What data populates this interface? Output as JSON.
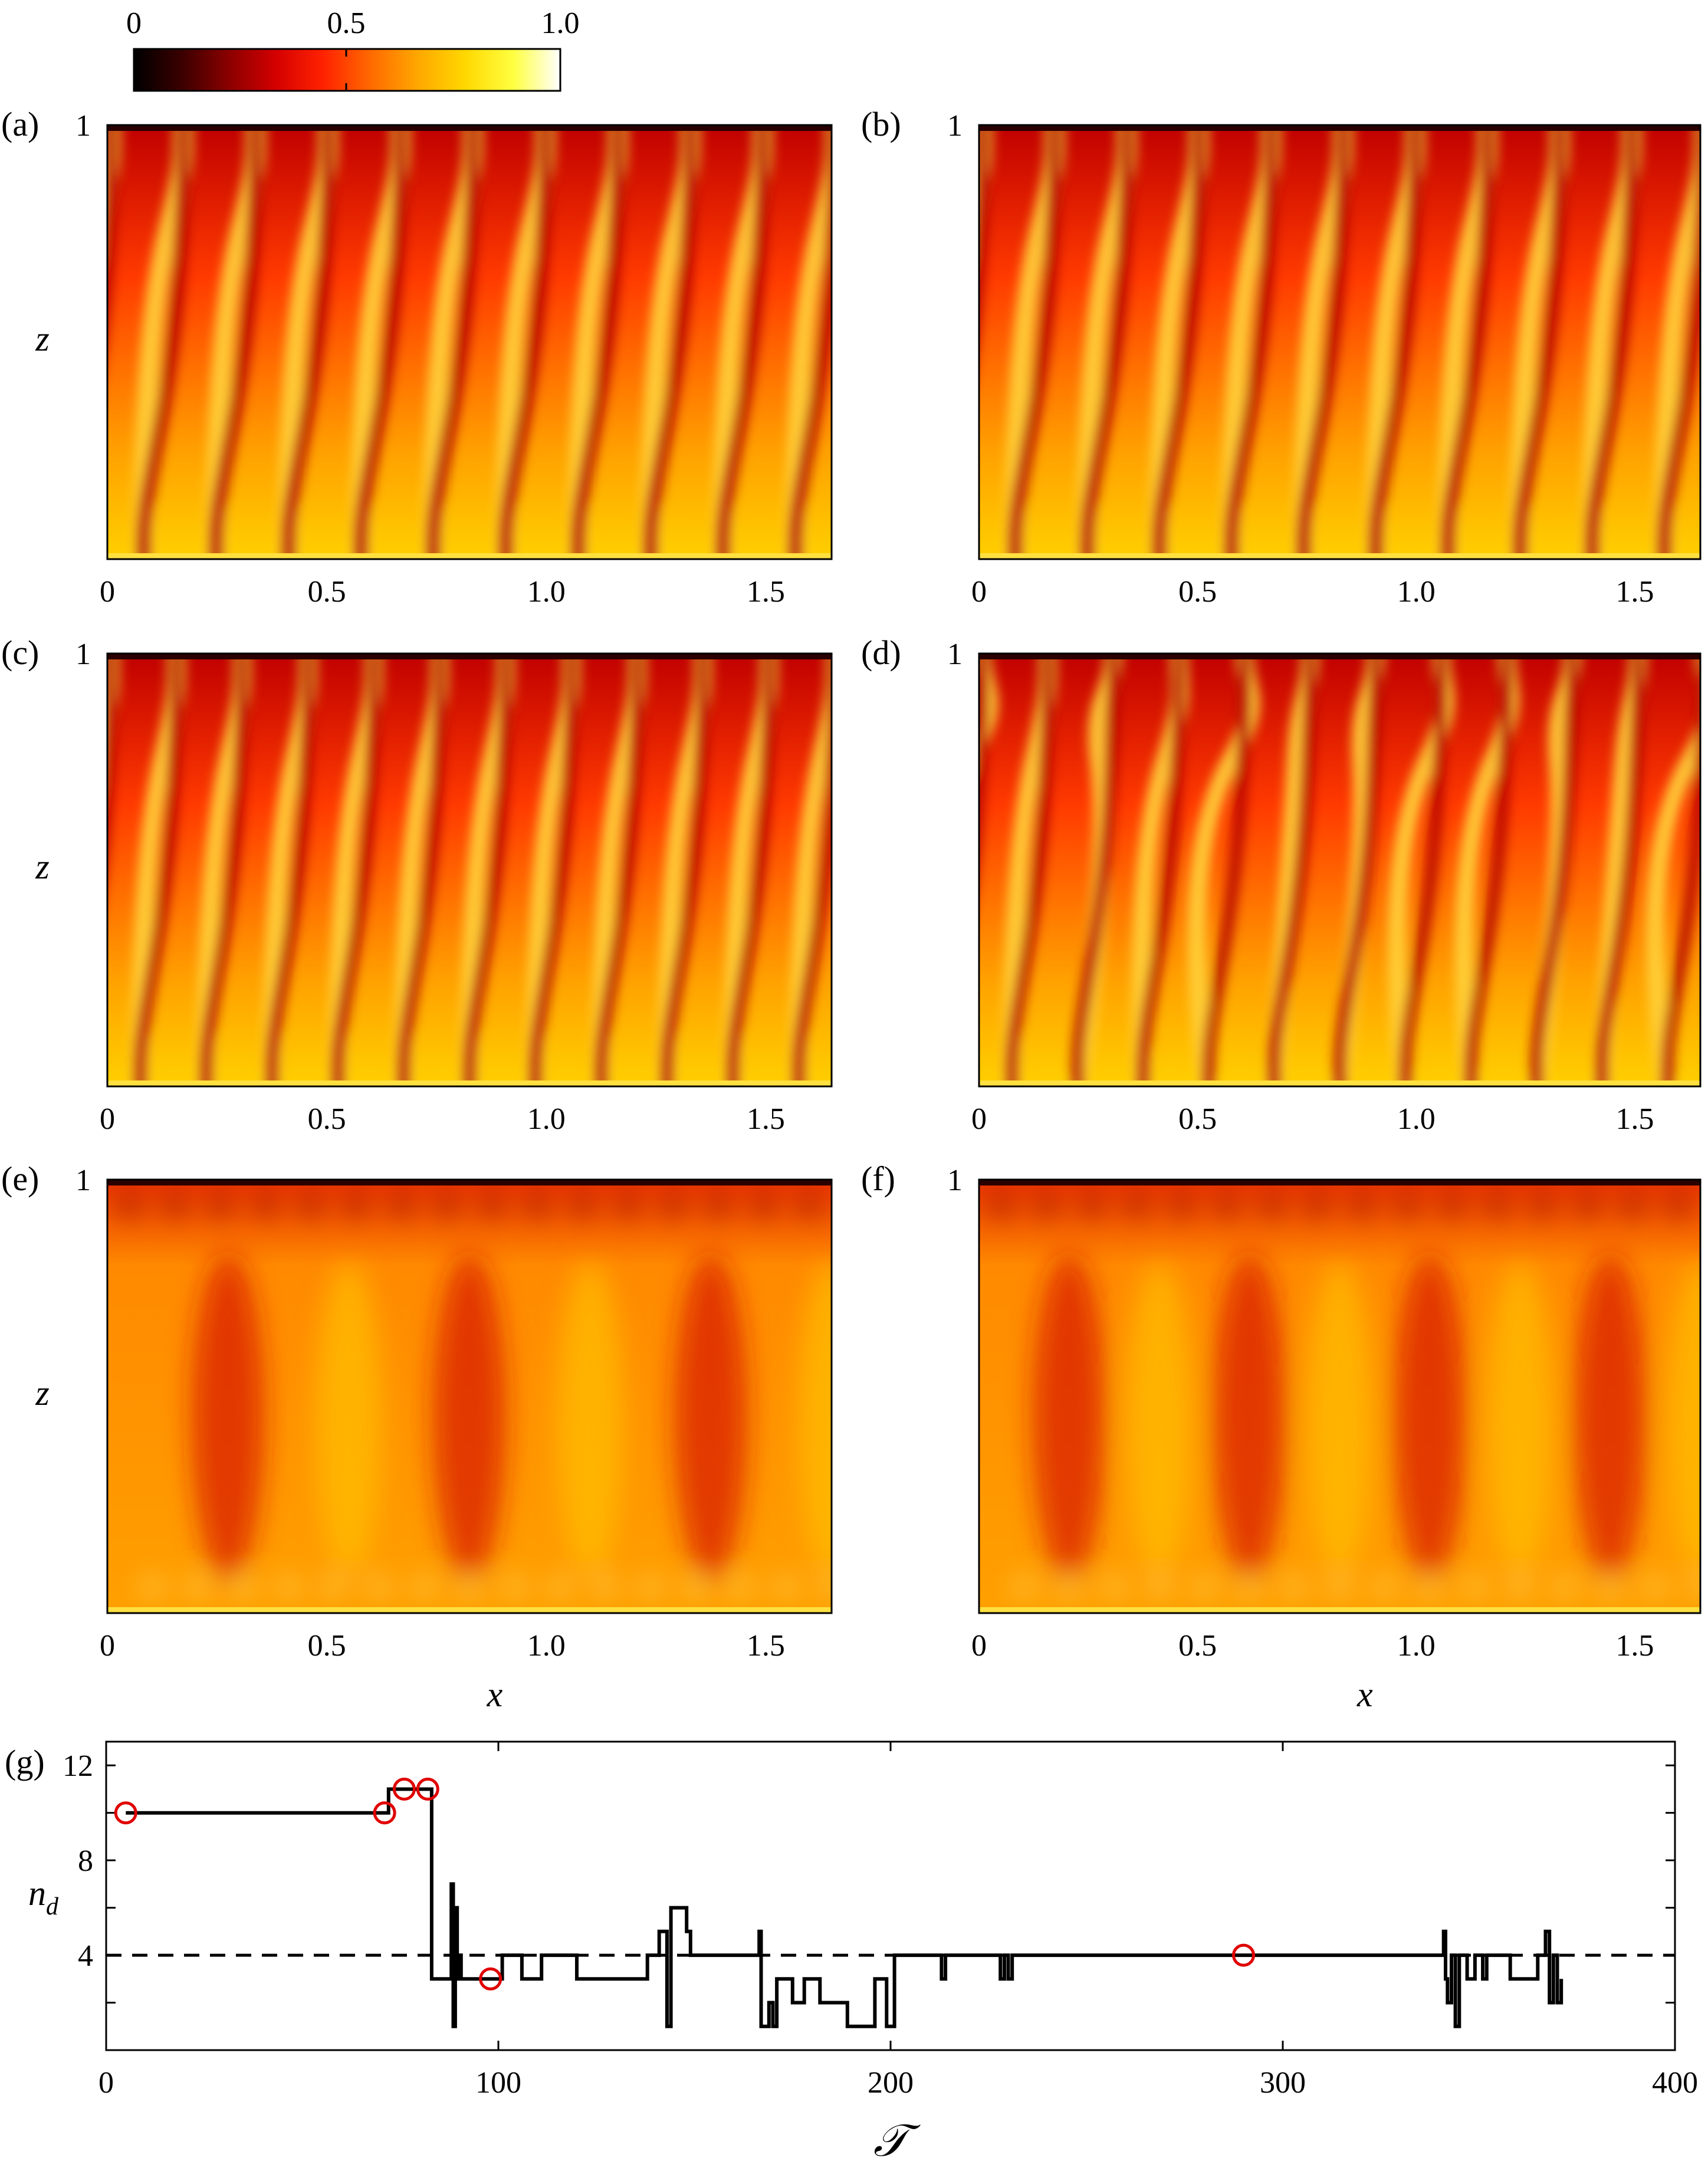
{
  "figure": {
    "colorbar": {
      "tick_labels": [
        "0",
        "0.5",
        "1.0"
      ],
      "tick_values": [
        0,
        0.5,
        1.0
      ],
      "colormap": [
        "#000000",
        "#3a0000",
        "#8a0000",
        "#d40000",
        "#ff2200",
        "#ff6a00",
        "#ffa800",
        "#ffd800",
        "#ffff40",
        "#ffffff"
      ]
    },
    "panels": [
      {
        "label": "(a)",
        "ylabel": "z",
        "ytick": "1",
        "xlabel": "",
        "xticks": [
          "0",
          "0.5",
          "1.0",
          "1.5"
        ],
        "n_plumes": 10
      },
      {
        "label": "(b)",
        "ylabel": "",
        "ytick": "1",
        "xlabel": "",
        "xticks": [
          "0",
          "0.5",
          "1.0",
          "1.5"
        ],
        "n_plumes": 10
      },
      {
        "label": "(c)",
        "ylabel": "z",
        "ytick": "1",
        "xlabel": "",
        "xticks": [
          "0",
          "0.5",
          "1.0",
          "1.5"
        ],
        "n_plumes": 11
      },
      {
        "label": "(d)",
        "ylabel": "",
        "ytick": "1",
        "xlabel": "",
        "xticks": [
          "0",
          "0.5",
          "1.0",
          "1.5"
        ],
        "n_plumes": 11
      },
      {
        "label": "(e)",
        "ylabel": "z",
        "ytick": "1",
        "xlabel": "x",
        "xticks": [
          "0",
          "0.5",
          "1.0",
          "1.5"
        ],
        "n_plumes": 3
      },
      {
        "label": "(f)",
        "ylabel": "",
        "ytick": "1",
        "xlabel": "x",
        "xticks": [
          "0",
          "0.5",
          "1.0",
          "1.5"
        ],
        "n_plumes": 4
      }
    ]
  },
  "chart_data": {
    "type": "line",
    "panel_label": "(g)",
    "xlabel": "𝒯",
    "ylabel": "n",
    "ylabel_sub": "d",
    "xlim": [
      0,
      400
    ],
    "ylim": [
      0,
      13
    ],
    "xticks": [
      0,
      100,
      200,
      300,
      400
    ],
    "yticks": [
      4,
      8,
      12
    ],
    "xtick_labels": [
      "0",
      "100",
      "200",
      "300",
      "400"
    ],
    "ytick_labels": [
      "4",
      "8",
      "12"
    ],
    "grid": false,
    "line_color": "#000000",
    "marker_color": "#e00000",
    "series": [
      {
        "x": [
          5,
          70,
          72,
          80,
          82,
          83,
          84,
          86,
          87,
          88,
          88.5,
          89,
          89.5,
          90,
          90.5,
          92,
          100,
          101,
          105,
          106,
          110,
          111,
          119,
          120,
          123,
          124,
          137,
          138,
          140,
          141,
          142,
          143,
          144,
          145,
          148,
          149,
          166,
          166.5,
          167,
          168,
          169,
          170,
          171,
          174,
          175,
          177,
          178,
          181,
          182,
          184,
          185,
          188,
          189,
          195,
          196,
          198,
          199,
          200,
          201,
          212,
          213,
          214,
          227,
          228,
          229,
          230,
          231,
          300,
          340,
          341,
          341.5,
          342,
          343,
          344,
          345,
          346,
          347,
          348,
          349,
          350,
          351,
          352,
          353,
          357,
          358,
          364,
          365,
          366,
          367,
          368,
          369,
          370,
          371
        ],
        "y": [
          10,
          10,
          11,
          11,
          11,
          3,
          3,
          3,
          3,
          7,
          1,
          6,
          3,
          4,
          3,
          3,
          3,
          4,
          4,
          3,
          3,
          4,
          4,
          3,
          3,
          3,
          3,
          4,
          4,
          5,
          5,
          1,
          6,
          6,
          5,
          4,
          4,
          5,
          1,
          1,
          2,
          1,
          3,
          3,
          2,
          2,
          3,
          3,
          2,
          2,
          2,
          2,
          1,
          1,
          3,
          3,
          1,
          1,
          4,
          4,
          3,
          4,
          4,
          3,
          4,
          3,
          4,
          4,
          4,
          5,
          3,
          2,
          4,
          1,
          4,
          4,
          3,
          3,
          4,
          4,
          3,
          4,
          4,
          4,
          3,
          3,
          4,
          4,
          5,
          2,
          4,
          2,
          3
        ]
      }
    ],
    "reference_line": {
      "y": 4,
      "style": "dashed"
    },
    "markers": [
      {
        "x": 5,
        "y": 10
      },
      {
        "x": 71,
        "y": 10
      },
      {
        "x": 76,
        "y": 11
      },
      {
        "x": 82,
        "y": 11
      },
      {
        "x": 98,
        "y": 3
      },
      {
        "x": 290,
        "y": 4
      }
    ]
  }
}
